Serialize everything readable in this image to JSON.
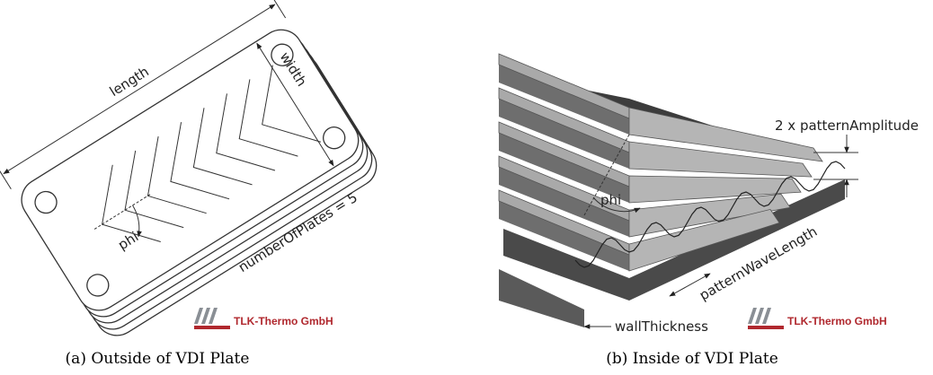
{
  "panels": [
    {
      "caption": "(a) Outside of VDI Plate",
      "labels": [
        "length",
        "width",
        "numberOfPlates = 5",
        "phi"
      ],
      "logo": "TLK-Thermo GmbH"
    },
    {
      "caption": "(b) Inside of VDI Plate",
      "labels": [
        "2 x patternAmplitude",
        "phi",
        "patternWaveLength",
        "wallThickness"
      ],
      "logo": "TLK-Thermo GmbH"
    }
  ]
}
